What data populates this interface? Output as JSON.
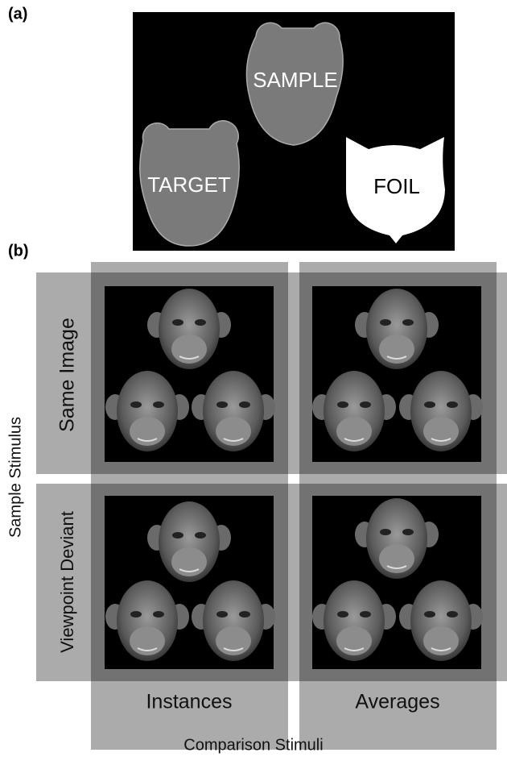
{
  "panel_a": {
    "label": "(a)",
    "sample": "SAMPLE",
    "target": "TARGET",
    "foil": "FOIL"
  },
  "panel_b": {
    "label": "(b)",
    "rows": [
      "Same Image",
      "Viewpoint Deviant"
    ],
    "row_axis": "Sample Stimulus",
    "columns": [
      "Instances",
      "Averages"
    ],
    "column_axis": "Comparison Stimuli"
  }
}
